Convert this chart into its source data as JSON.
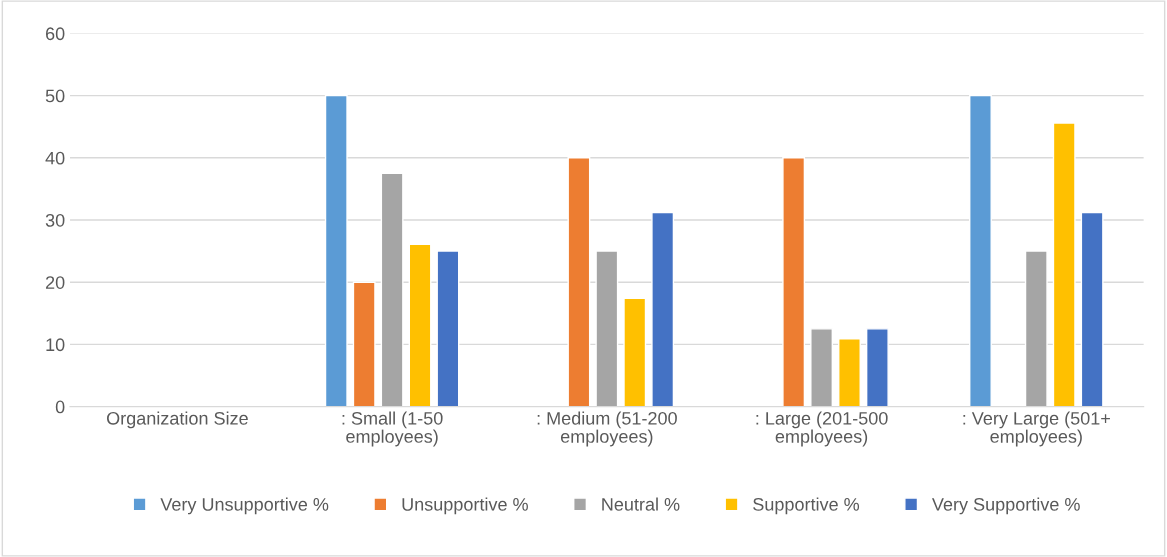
{
  "chart_data": {
    "type": "bar",
    "categories": [
      "Organization Size",
      ": Small (1-50 employees)",
      ": Medium (51-200 employees)",
      ": Large (201-500 employees)",
      ": Very Large (501+ employees)"
    ],
    "series": [
      {
        "name": "Very Unsupportive %",
        "color": "#5b9bd5",
        "values": [
          null,
          50,
          null,
          null,
          50
        ]
      },
      {
        "name": "Unsupportive %",
        "color": "#ed7d31",
        "values": [
          null,
          20,
          40,
          40,
          null
        ]
      },
      {
        "name": "Neutral %",
        "color": "#a5a5a5",
        "values": [
          null,
          37.5,
          25,
          12.5,
          25
        ]
      },
      {
        "name": "Supportive %",
        "color": "#ffc000",
        "values": [
          null,
          26.1,
          17.4,
          10.9,
          45.6
        ]
      },
      {
        "name": "Very Supportive %",
        "color": "#4472c4",
        "values": [
          null,
          25,
          31.2,
          12.5,
          31.2
        ]
      }
    ],
    "ylim": [
      0,
      60
    ],
    "yticks": [
      0,
      10,
      20,
      30,
      40,
      50,
      60
    ],
    "grid": "y",
    "legend": "bottom"
  }
}
